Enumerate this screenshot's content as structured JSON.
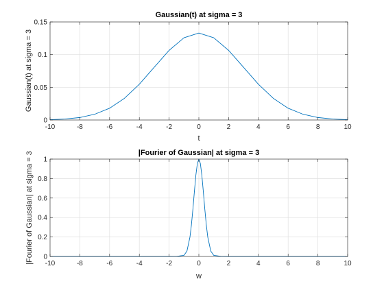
{
  "chart_data": [
    {
      "type": "line",
      "title": "Gaussian(t) at sigma = 3",
      "xlabel": "t",
      "ylabel": "Gaussian(t) at sigma = 3",
      "xlim": [
        -10,
        10
      ],
      "ylim": [
        0,
        0.15
      ],
      "xticks": [
        "-10",
        "-8",
        "-6",
        "-4",
        "-2",
        "0",
        "2",
        "4",
        "6",
        "8",
        "10"
      ],
      "yticks": [
        "0",
        "0.05",
        "0.1",
        "0.15"
      ],
      "grid": true,
      "legend": "none",
      "color": "#0072BD",
      "series": [
        {
          "x": [
            -10,
            -9,
            -8,
            -7,
            -6,
            -5,
            -4,
            -3,
            -2,
            -1,
            0,
            1,
            2,
            3,
            4,
            5,
            6,
            7,
            8,
            9,
            10
          ],
          "y": [
            0.0005,
            0.0015,
            0.0038,
            0.0088,
            0.018,
            0.0332,
            0.0547,
            0.0807,
            0.1065,
            0.1258,
            0.133,
            0.1258,
            0.1065,
            0.0807,
            0.0547,
            0.0332,
            0.018,
            0.0088,
            0.0038,
            0.0015,
            0.0005
          ]
        }
      ]
    },
    {
      "type": "line",
      "title": "|Fourier of Gaussian| at sigma = 3",
      "xlabel": "w",
      "ylabel": "|Fourier of Gaussian| at sigma = 3",
      "xlim": [
        -10,
        10
      ],
      "ylim": [
        0,
        1
      ],
      "xticks": [
        "-10",
        "-8",
        "-6",
        "-4",
        "-2",
        "0",
        "2",
        "4",
        "6",
        "8",
        "10"
      ],
      "yticks": [
        "0",
        "0.2",
        "0.4",
        "0.6",
        "0.8",
        "1"
      ],
      "grid": true,
      "legend": "none",
      "color": "#0072BD",
      "series": [
        {
          "x": [
            -10,
            -2,
            -1.5,
            -1.2,
            -1.0,
            -0.8,
            -0.6,
            -0.5,
            -0.4,
            -0.3,
            -0.2,
            -0.1,
            0,
            0.1,
            0.2,
            0.3,
            0.4,
            0.5,
            0.6,
            0.8,
            1.0,
            1.2,
            1.5,
            2,
            10
          ],
          "y": [
            0,
            0,
            0.0004,
            0.0074,
            0.0111,
            0.0556,
            0.1979,
            0.3247,
            0.4868,
            0.667,
            0.8353,
            0.956,
            1,
            0.956,
            0.8353,
            0.667,
            0.4868,
            0.3247,
            0.1979,
            0.0556,
            0.0111,
            0.0074,
            0.0004,
            0,
            0
          ]
        }
      ]
    }
  ]
}
